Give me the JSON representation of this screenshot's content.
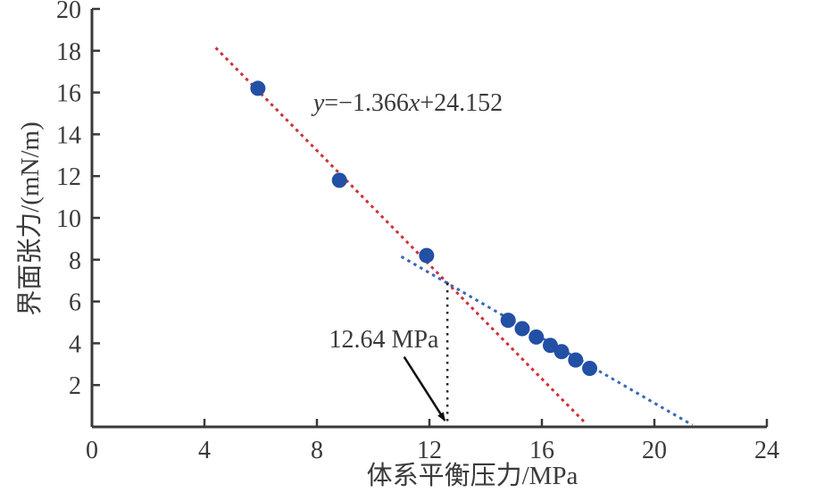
{
  "chart_data": {
    "type": "scatter",
    "title": "",
    "xlabel": "体系平衡压力/MPa",
    "ylabel": "界面张力/(mN/m)",
    "xlim": [
      0,
      24
    ],
    "ylim": [
      0,
      20
    ],
    "x_ticks": [
      0,
      4,
      8,
      12,
      16,
      20,
      24
    ],
    "y_ticks": [
      2,
      4,
      6,
      8,
      10,
      12,
      14,
      16,
      18,
      20
    ],
    "grid": false,
    "legend": "none",
    "axis_color": "#3a3a3a",
    "tick_label_color": "#3a3a3a",
    "points": {
      "name": "interfacial-tension-measurements",
      "color": "#2150a5",
      "radius_px": 8.5,
      "x": [
        5.9,
        8.8,
        11.9,
        14.8,
        15.3,
        15.8,
        16.3,
        16.7,
        17.2,
        17.7
      ],
      "y": [
        16.2,
        11.8,
        8.2,
        5.1,
        4.7,
        4.3,
        3.9,
        3.6,
        3.2,
        2.8
      ]
    },
    "trend_lines": [
      {
        "name": "red-regression",
        "color": "#cf3038",
        "style": "dashed",
        "slope": -1.366,
        "intercept": 24.152,
        "x_start": 4.4,
        "x_end": 17.55,
        "label": "y=−1.366x+24.152"
      },
      {
        "name": "blue-regression",
        "color": "#3a67b5",
        "style": "dashed",
        "slope": -0.779,
        "intercept": 16.72,
        "x_start": 11.0,
        "x_end": 21.35,
        "label": ""
      }
    ],
    "reference_line": {
      "name": "miscibility-pressure-vline",
      "x": 12.64,
      "y_bottom": 0,
      "y_top": 6.88,
      "style": "dotted",
      "color": "#222222"
    },
    "annotation": {
      "text": "12.64 MPa",
      "text_pos": [
        10.4,
        4.15
      ],
      "arrow_from": [
        11.1,
        3.35
      ],
      "arrow_to": [
        12.55,
        0.3
      ],
      "arrow_color": "#111111"
    }
  },
  "labels": {
    "equation_y": "y",
    "equation_mid": "=−1.366",
    "equation_x": "x",
    "equation_tail": "+24.152",
    "annotation": "12.64 MPa",
    "x_axis_title": "体系平衡压力/MPa",
    "y_axis_title": "界面张力/(mN/m)"
  }
}
